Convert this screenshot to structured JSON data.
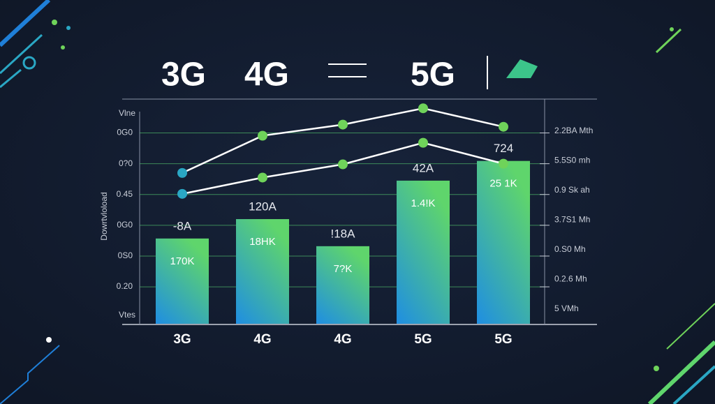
{
  "chart_data": {
    "type": "bar",
    "header": [
      "3G",
      "4G",
      "5G"
    ],
    "ylabel": "Dowrtvloload",
    "categories": [
      "3G",
      "4G",
      "4G",
      "5G",
      "5G"
    ],
    "values": [
      2.57,
      3.2,
      2.32,
      4.45,
      5.09
    ],
    "top_labels": [
      "-8A",
      "120A",
      "!18A",
      "42A",
      "724"
    ],
    "inner_labels": [
      "170K",
      "18HK",
      "7?K",
      "1.4!K",
      "25 1K"
    ],
    "bar_gradient": [
      "#1f8ee2",
      "#5fd56c"
    ],
    "lines": [
      {
        "color": "#ffffff",
        "marker_color": "#6fd35a",
        "values": [
          4.7,
          5.91,
          6.27,
          6.8,
          6.2
        ]
      },
      {
        "color": "#ffffff",
        "marker_color": "#6fd35a",
        "values": [
          4.02,
          4.55,
          4.98,
          5.68,
          5.0
        ]
      }
    ],
    "first_marker_color": "#2aa7c4",
    "ylim": [
      -0.2,
      7.1
    ],
    "yticks": [
      {
        "value": 1,
        "label": "0.20"
      },
      {
        "value": 2,
        "label": "0S0"
      },
      {
        "value": 3,
        "label": "0G0"
      },
      {
        "value": 4,
        "label": "0.45"
      },
      {
        "value": 5,
        "label": "0?0"
      },
      {
        "value": 6,
        "label": "0G0"
      }
    ],
    "y_top_label": "Vlne",
    "y_bottom_label": "Vtes",
    "right_labels": [
      "5 VMh",
      "0.2.6 Mh",
      "0.S0 Mh",
      "3.7S1 Mh",
      "0.9 Sk ah",
      "5.5S0 mh",
      "2.2BA Mth"
    ],
    "grid": true,
    "grid_color": "#4fb86a"
  }
}
